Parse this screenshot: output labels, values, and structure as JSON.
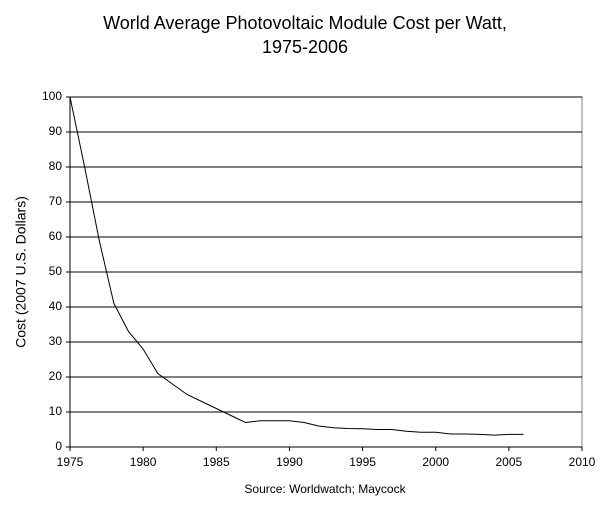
{
  "chart_data": {
    "type": "line",
    "title": [
      "World Average Photovoltaic Module Cost per Watt,",
      "1975-2006"
    ],
    "y_label": "Cost (2007 U.S. Dollars)",
    "x_label": "Source: Worldwatch; Maycock",
    "x": [
      1975,
      1976,
      1977,
      1978,
      1979,
      1980,
      1981,
      1982,
      1983,
      1984,
      1985,
      1986,
      1987,
      1988,
      1989,
      1990,
      1991,
      1992,
      1993,
      1994,
      1995,
      1996,
      1997,
      1998,
      1999,
      2000,
      2001,
      2002,
      2003,
      2004,
      2005,
      2006
    ],
    "series": [
      {
        "color": "#000000",
        "values": [
          100,
          80,
          59,
          41,
          33,
          28,
          21,
          18,
          15,
          13,
          11,
          9,
          7,
          7.5,
          7.5,
          7.5,
          7,
          6,
          5.5,
          5.3,
          5.2,
          5,
          5,
          4.5,
          4.2,
          4.2,
          3.7,
          3.7,
          3.6,
          3.4,
          3.6,
          3.6
        ]
      }
    ],
    "xlim": [
      1975,
      2010
    ],
    "xticks": [
      1975,
      1980,
      1985,
      1990,
      1995,
      2000,
      2005,
      2010
    ],
    "ylim": [
      0,
      100
    ],
    "yticks": [
      0,
      10,
      20,
      30,
      40,
      50,
      60,
      70,
      80,
      90,
      100
    ],
    "grid": true
  }
}
